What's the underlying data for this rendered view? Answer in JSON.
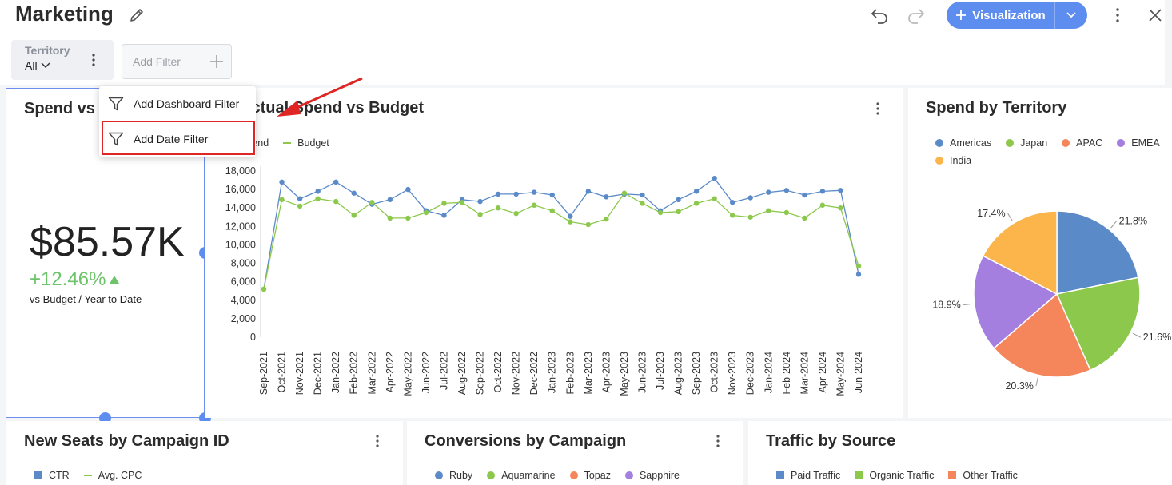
{
  "header": {
    "title": "Marketing",
    "visualization_label": "Visualization"
  },
  "filters": {
    "territory": {
      "label": "Territory",
      "value": "All"
    },
    "add_filter_label": "Add Filter"
  },
  "filter_menu": {
    "items": [
      {
        "label": "Add Dashboard Filter",
        "icon": "funnel-icon"
      },
      {
        "label": "Add Date Filter",
        "icon": "funnel-icon"
      }
    ]
  },
  "kpi": {
    "title": "Spend vs Budget",
    "value": "$85.57K",
    "delta": "+12.46%",
    "subtitle": "vs Budget / Year to Date"
  },
  "line_chart": {
    "title": "Actual Spend vs Budget"
  },
  "pie_chart": {
    "title": "Spend by Territory"
  },
  "bottom_cards": [
    {
      "title": "New Seats by Campaign ID",
      "legend": [
        {
          "name": "CTR",
          "color": "#5b8ac8",
          "shape": "square"
        },
        {
          "name": "Avg. CPC",
          "color": "#8cc84b",
          "shape": "dash"
        }
      ]
    },
    {
      "title": "Conversions by Campaign",
      "legend": [
        {
          "name": "Ruby",
          "color": "#5b8ac8",
          "shape": "dot"
        },
        {
          "name": "Aquamarine",
          "color": "#8cc84b",
          "shape": "dot"
        },
        {
          "name": "Topaz",
          "color": "#f5865c",
          "shape": "dot"
        },
        {
          "name": "Sapphire",
          "color": "#a57fe0",
          "shape": "dot"
        }
      ]
    },
    {
      "title": "Traffic by Source",
      "legend": [
        {
          "name": "Paid Traffic",
          "color": "#5b8ac8",
          "shape": "square"
        },
        {
          "name": "Organic Traffic",
          "color": "#8cc84b",
          "shape": "square"
        },
        {
          "name": "Other Traffic",
          "color": "#f5865c",
          "shape": "square"
        }
      ]
    }
  ],
  "colors": {
    "accent": "#5e8df0",
    "highlight": "#e02525",
    "positive": "#6cc36a"
  },
  "chart_data": [
    {
      "type": "line",
      "x": [
        "Sep-2021",
        "Oct-2021",
        "Nov-2021",
        "Dec-2021",
        "Jan-2022",
        "Feb-2022",
        "Mar-2022",
        "Apr-2022",
        "May-2022",
        "Jun-2022",
        "Jul-2022",
        "Aug-2022",
        "Sep-2022",
        "Oct-2022",
        "Nov-2022",
        "Dec-2022",
        "Jan-2023",
        "Feb-2023",
        "Mar-2023",
        "Apr-2023",
        "May-2023",
        "Jun-2023",
        "Jul-2023",
        "Aug-2023",
        "Sep-2023",
        "Oct-2023",
        "Nov-2023",
        "Dec-2023",
        "Jan-2024",
        "Feb-2024",
        "Mar-2024",
        "Apr-2024",
        "May-2024",
        "Jun-2024"
      ],
      "series": [
        {
          "name": "Spend",
          "color": "#5b8ac8",
          "values": [
            5200,
            16800,
            15000,
            15800,
            16800,
            15600,
            14400,
            14900,
            16000,
            13700,
            13200,
            14900,
            14700,
            15500,
            15500,
            15700,
            15400,
            13100,
            15800,
            15200,
            15500,
            15400,
            13700,
            14900,
            15800,
            17200,
            14600,
            15100,
            15700,
            15900,
            15400,
            15800,
            15900,
            6800
          ]
        },
        {
          "name": "Budget",
          "color": "#8cc84b",
          "values": [
            5200,
            14900,
            14200,
            15000,
            14700,
            13200,
            14600,
            12900,
            12900,
            13500,
            14500,
            14600,
            13300,
            14000,
            13400,
            14300,
            13700,
            12500,
            12200,
            12800,
            15600,
            14500,
            13500,
            13600,
            14500,
            15000,
            13200,
            13000,
            13700,
            13500,
            12900,
            14300,
            14000,
            7700
          ]
        }
      ],
      "ylim": [
        0,
        18000
      ],
      "yticks": [
        "18,000",
        "16,000",
        "14,000",
        "12,000",
        "10,000",
        "8,000",
        "6,000",
        "4,000",
        "2,000",
        "0"
      ],
      "legend_position": "top-left"
    },
    {
      "type": "pie",
      "categories": [
        "Americas",
        "Japan",
        "APAC",
        "EMEA",
        "India"
      ],
      "values": [
        21.8,
        21.6,
        20.3,
        18.9,
        17.4
      ],
      "labels": [
        "21.8%",
        "21.6%",
        "20.3%",
        "18.9%",
        "17.4%"
      ],
      "colors": [
        "#5b8ac8",
        "#8cc84b",
        "#f5865c",
        "#a57fe0",
        "#fbb54a"
      ],
      "legend_position": "top"
    }
  ]
}
